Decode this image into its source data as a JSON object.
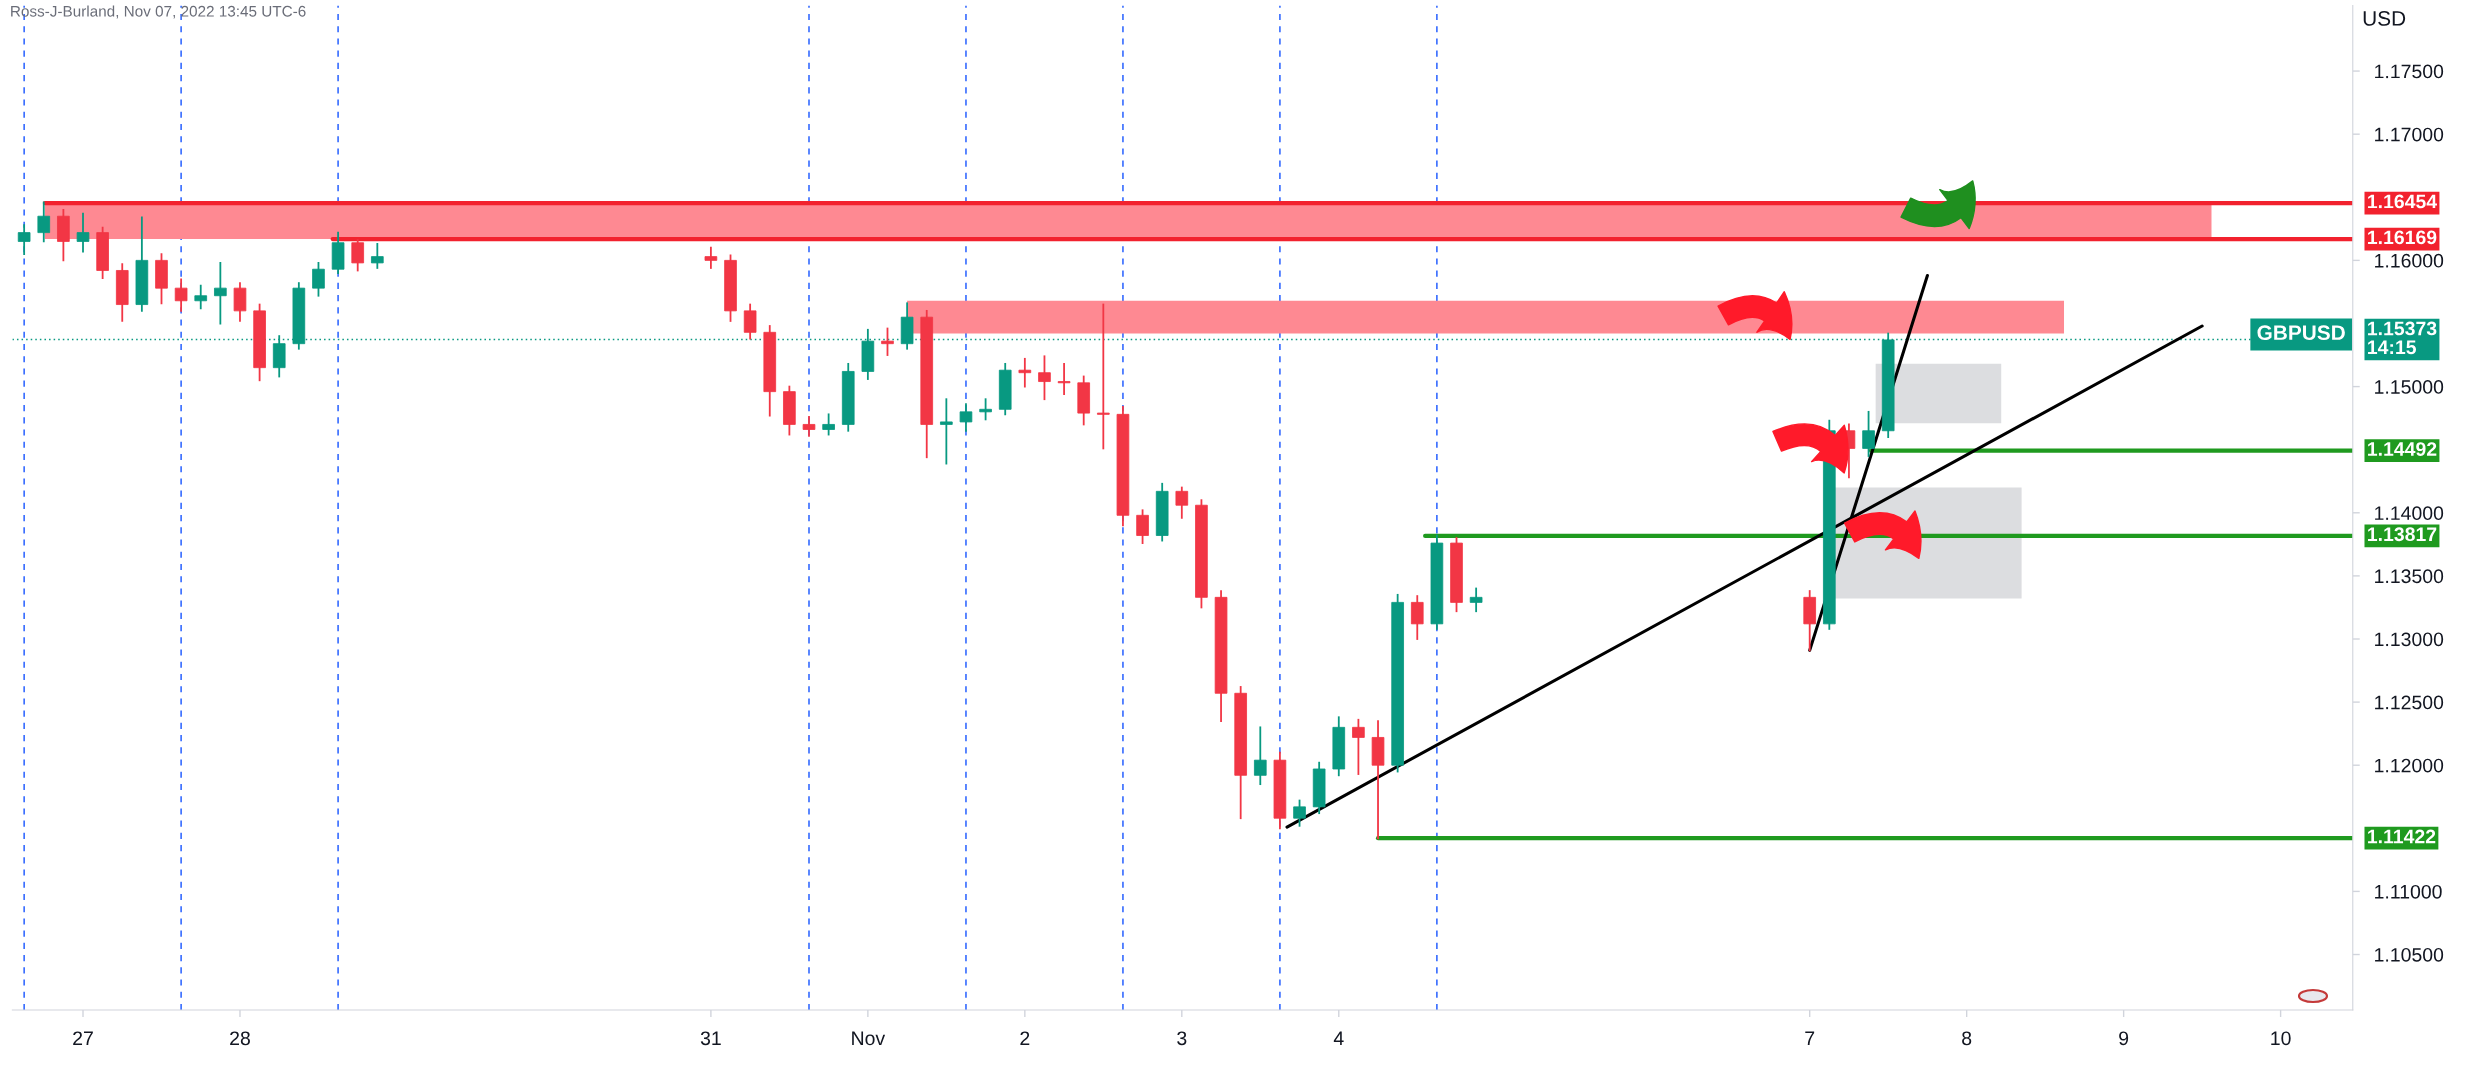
{
  "chart_data": {
    "type": "candlestick",
    "x": [
      "2022-10-26T15:00",
      "2022-10-26T18:00",
      "2022-10-26T21:00",
      "2022-10-27T00:00",
      "2022-10-27T03:00",
      "2022-10-27T06:00",
      "2022-10-27T09:00",
      "2022-10-27T12:00",
      "2022-10-27T15:00",
      "2022-10-27T18:00",
      "2022-10-27T21:00",
      "2022-10-28T00:00",
      "2022-10-28T03:00",
      "2022-10-28T06:00",
      "2022-10-28T09:00",
      "2022-10-28T12:00",
      "2022-10-28T15:00",
      "2022-10-28T18:00",
      "2022-10-28T21:00",
      "2022-10-31T00:00",
      "2022-10-31T03:00",
      "2022-10-31T06:00",
      "2022-10-31T09:00",
      "2022-10-31T12:00",
      "2022-10-31T15:00",
      "2022-10-31T18:00",
      "2022-10-31T21:00",
      "2022-11-01T00:00",
      "2022-11-01T03:00",
      "2022-11-01T06:00",
      "2022-11-01T09:00",
      "2022-11-01T12:00",
      "2022-11-01T15:00",
      "2022-11-01T18:00",
      "2022-11-01T21:00",
      "2022-11-02T00:00",
      "2022-11-02T03:00",
      "2022-11-02T06:00",
      "2022-11-02T09:00",
      "2022-11-02T12:00",
      "2022-11-02T15:00",
      "2022-11-02T18:00",
      "2022-11-02T21:00",
      "2022-11-03T00:00",
      "2022-11-03T03:00",
      "2022-11-03T06:00",
      "2022-11-03T09:00",
      "2022-11-03T12:00",
      "2022-11-03T15:00",
      "2022-11-03T18:00",
      "2022-11-03T21:00",
      "2022-11-04T00:00",
      "2022-11-04T03:00",
      "2022-11-04T06:00",
      "2022-11-04T09:00",
      "2022-11-04T12:00",
      "2022-11-04T15:00",
      "2022-11-04T18:00",
      "2022-11-04T21:00",
      "2022-11-07T00:00",
      "2022-11-07T03:00",
      "2022-11-07T06:00",
      "2022-11-07T09:00",
      "2022-11-07T12:00"
    ],
    "ohlc": [
      [
        1.1615,
        1.1628,
        1.1605,
        1.1622
      ],
      [
        1.1622,
        1.1646,
        1.1615,
        1.1635
      ],
      [
        1.1635,
        1.164,
        1.16,
        1.1615
      ],
      [
        1.1615,
        1.1637,
        1.1607,
        1.1622
      ],
      [
        1.1622,
        1.1626,
        1.1586,
        1.1592
      ],
      [
        1.1592,
        1.1597,
        1.1552,
        1.1565
      ],
      [
        1.1565,
        1.1634,
        1.156,
        1.16
      ],
      [
        1.16,
        1.1605,
        1.1566,
        1.1578
      ],
      [
        1.1578,
        1.1585,
        1.156,
        1.1568
      ],
      [
        1.1568,
        1.158,
        1.1562,
        1.1572
      ],
      [
        1.1572,
        1.1598,
        1.155,
        1.1578
      ],
      [
        1.1578,
        1.1582,
        1.1552,
        1.156
      ],
      [
        1.156,
        1.1565,
        1.1505,
        1.1515
      ],
      [
        1.1515,
        1.154,
        1.1508,
        1.1534
      ],
      [
        1.1534,
        1.1582,
        1.153,
        1.1578
      ],
      [
        1.1578,
        1.1598,
        1.1572,
        1.1593
      ],
      [
        1.1593,
        1.1622,
        1.159,
        1.1614
      ],
      [
        1.1614,
        1.1616,
        1.1592,
        1.1598
      ],
      [
        1.1598,
        1.1613,
        1.1594,
        1.1603
      ],
      [
        1.1603,
        1.161,
        1.1594,
        1.16
      ],
      [
        1.16,
        1.1604,
        1.1552,
        1.156
      ],
      [
        1.156,
        1.1565,
        1.1538,
        1.1543
      ],
      [
        1.1543,
        1.1548,
        1.1477,
        1.1496
      ],
      [
        1.1496,
        1.15,
        1.1462,
        1.147
      ],
      [
        1.147,
        1.1476,
        1.1461,
        1.1466
      ],
      [
        1.1466,
        1.1478,
        1.1462,
        1.147
      ],
      [
        1.147,
        1.1518,
        1.1465,
        1.1512
      ],
      [
        1.1512,
        1.1545,
        1.1506,
        1.1536
      ],
      [
        1.1536,
        1.1546,
        1.1525,
        1.1534
      ],
      [
        1.1534,
        1.1566,
        1.153,
        1.1555
      ],
      [
        1.1555,
        1.156,
        1.1444,
        1.147
      ],
      [
        1.147,
        1.149,
        1.1439,
        1.1472
      ],
      [
        1.1472,
        1.1486,
        1.1465,
        1.148
      ],
      [
        1.148,
        1.149,
        1.1474,
        1.1482
      ],
      [
        1.1482,
        1.1518,
        1.1478,
        1.1513
      ],
      [
        1.1513,
        1.1522,
        1.15,
        1.1511
      ],
      [
        1.1511,
        1.1524,
        1.149,
        1.1504
      ],
      [
        1.1504,
        1.1518,
        1.1494,
        1.1503
      ],
      [
        1.1503,
        1.1508,
        1.147,
        1.1479
      ],
      [
        1.1479,
        1.1565,
        1.1451,
        1.1478
      ],
      [
        1.1478,
        1.1484,
        1.139,
        1.1398
      ],
      [
        1.1398,
        1.1402,
        1.1376,
        1.1382
      ],
      [
        1.1382,
        1.1423,
        1.1378,
        1.1417
      ],
      [
        1.1417,
        1.142,
        1.1396,
        1.1406
      ],
      [
        1.1406,
        1.141,
        1.1325,
        1.1333
      ],
      [
        1.1333,
        1.1338,
        1.1235,
        1.1257
      ],
      [
        1.1257,
        1.1262,
        1.1158,
        1.1192
      ],
      [
        1.1192,
        1.123,
        1.1185,
        1.1204
      ],
      [
        1.1204,
        1.121,
        1.115,
        1.1158
      ],
      [
        1.1158,
        1.1172,
        1.1152,
        1.1167
      ],
      [
        1.1167,
        1.1202,
        1.1162,
        1.1197
      ],
      [
        1.1197,
        1.1238,
        1.1192,
        1.123
      ],
      [
        1.123,
        1.1236,
        1.1193,
        1.1222
      ],
      [
        1.1222,
        1.1235,
        1.1142,
        1.12
      ],
      [
        1.12,
        1.1335,
        1.1195,
        1.1329
      ],
      [
        1.1329,
        1.1334,
        1.13,
        1.1312
      ],
      [
        1.1312,
        1.1382,
        1.1308,
        1.1376
      ],
      [
        1.1376,
        1.138,
        1.1322,
        1.1329
      ],
      [
        1.1329,
        1.134,
        1.1322,
        1.1333
      ],
      [
        1.1333,
        1.1338,
        1.1291,
        1.1312
      ],
      [
        1.1312,
        1.1473,
        1.1308,
        1.1465
      ],
      [
        1.1465,
        1.147,
        1.1428,
        1.1451
      ],
      [
        1.1451,
        1.148,
        1.1445,
        1.1465
      ],
      [
        1.1465,
        1.1542,
        1.146,
        1.1537
      ]
    ],
    "colors": [
      "#089981",
      "#089981",
      "#f23645",
      "#089981",
      "#f23645",
      "#f23645",
      "#089981",
      "#f23645",
      "#f23645",
      "#089981",
      "#089981",
      "#f23645",
      "#f23645",
      "#089981",
      "#089981",
      "#089981",
      "#089981",
      "#f23645",
      "#089981",
      "#f23645",
      "#f23645",
      "#f23645",
      "#f23645",
      "#f23645",
      "#f23645",
      "#089981",
      "#089981",
      "#089981",
      "#f23645",
      "#089981",
      "#f23645",
      "#089981",
      "#089981",
      "#089981",
      "#089981",
      "#f23645",
      "#f23645",
      "#f23645",
      "#f23645",
      "#f23645",
      "#f23645",
      "#f23645",
      "#089981",
      "#f23645",
      "#f23645",
      "#f23645",
      "#f23645",
      "#089981",
      "#f23645",
      "#089981",
      "#089981",
      "#089981",
      "#f23645",
      "#f23645",
      "#089981",
      "#f23645",
      "#089981",
      "#f23645",
      "#089981",
      "#f23645",
      "#089981",
      "#f23645",
      "#089981",
      "#089981"
    ],
    "series": [
      {
        "type": "line",
        "x": [
          "2022-10-26T18:10",
          "2022-11-09T13:26"
        ],
        "values": [
          null,
          null
        ],
        "lower": [
          1.16169,
          1.16169
        ],
        "upper": [
          1.16454,
          1.16454
        ],
        "color": "#fe8992"
      },
      {
        "type": "line",
        "x": [
          "2022-11-01T06:00",
          "2022-11-08T14:53"
        ],
        "values": [
          null,
          null
        ],
        "lower": [
          1.1542,
          1.1542
        ],
        "upper": [
          1.1568,
          1.1568
        ],
        "color": "#fe8992"
      },
      {
        "type": "line",
        "x": [
          "2022-11-07T10:05",
          "2022-11-08T05:17"
        ],
        "values": [
          null,
          null
        ],
        "lower": [
          1.1471,
          1.1471
        ],
        "upper": [
          1.1518,
          1.1518
        ],
        "color": "#dcdde0"
      },
      {
        "type": "line",
        "x": [
          "2022-11-07T02:10",
          "2022-11-08T08:24"
        ],
        "values": [
          null,
          null
        ],
        "lower": [
          1.1332,
          1.1332
        ],
        "upper": [
          1.142,
          1.142
        ],
        "color": "#dcdde0"
      },
      {
        "type": "line",
        "x": [
          "2022-10-26T18:10",
          "2022-11-10T11:02"
        ],
        "values": [
          1.16454,
          1.16454
        ],
        "color": "#f2222e",
        "value_labels": [
          null,
          "1.16454"
        ]
      },
      {
        "type": "line",
        "x": [
          "2022-10-28T14:10",
          "2022-11-10T11:02"
        ],
        "values": [
          1.16169,
          1.16169
        ],
        "color": "#f2222e",
        "value_labels": [
          null,
          "1.16169"
        ]
      },
      {
        "type": "line",
        "x": [
          "2022-11-07T09:22",
          "2022-11-10T11:02"
        ],
        "values": [
          1.14492,
          1.14492
        ],
        "color": "#1f9a1f",
        "value_labels": [
          null,
          "1.14492"
        ]
      },
      {
        "type": "line",
        "x": [
          "2022-11-04T13:12",
          "2022-11-10T11:02"
        ],
        "values": [
          1.13817,
          1.13817
        ],
        "color": "#1f9a1f",
        "value_labels": [
          null,
          "1.13817"
        ]
      },
      {
        "type": "line",
        "x": [
          "2022-11-04T06:00",
          "2022-11-10T11:02"
        ],
        "values": [
          1.11422,
          1.11422
        ],
        "color": "#1f9a1f",
        "value_labels": [
          null,
          "1.11422"
        ]
      },
      {
        "type": "line",
        "x": [
          "2022-11-03T16:05",
          "2022-11-09T12:00"
        ],
        "values": [
          1.1151,
          1.1548
        ],
        "color": "#000000"
      },
      {
        "type": "line",
        "x": [
          "2022-11-07T00:00",
          "2022-11-07T18:00"
        ],
        "values": [
          1.1291,
          1.1588
        ],
        "color": "#000000"
      }
    ],
    "xlim": [
      "2022-10-26T13:12",
      "2022-11-10T11:02"
    ],
    "xticks": [
      {
        "value": "2022-10-27",
        "label": "27"
      },
      {
        "value": "2022-10-28",
        "label": "28"
      },
      {
        "value": "2022-10-31",
        "label": "31"
      },
      {
        "value": "2022-11-01",
        "label": "Nov"
      },
      {
        "value": "2022-11-02",
        "label": "2"
      },
      {
        "value": "2022-11-03",
        "label": "3"
      },
      {
        "value": "2022-11-04",
        "label": "4"
      },
      {
        "value": "2022-11-07",
        "label": "7"
      },
      {
        "value": "2022-11-08",
        "label": "8"
      },
      {
        "value": "2022-11-09",
        "label": "9"
      },
      {
        "value": "2022-11-10",
        "label": "10"
      }
    ],
    "ylim": [
      1.1006,
      1.1802
    ],
    "yticks": [
      {
        "value": 1.105,
        "label": "1.10500"
      },
      {
        "value": 1.11,
        "label": "1.11000"
      },
      {
        "value": 1.12,
        "label": "1.12000"
      },
      {
        "value": 1.125,
        "label": "1.12500"
      },
      {
        "value": 1.13,
        "label": "1.13000"
      },
      {
        "value": 1.135,
        "label": "1.13500"
      },
      {
        "value": 1.14,
        "label": "1.14000"
      },
      {
        "value": 1.15,
        "label": "1.15000"
      },
      {
        "value": 1.16,
        "label": "1.16000"
      },
      {
        "value": 1.17,
        "label": "1.17000"
      },
      {
        "value": 1.175,
        "label": "1.17500"
      }
    ],
    "ylabel": "USD",
    "ref_lines": [
      {
        "axis": "x",
        "value": "2022-10-26T15:00",
        "color": "#2962ff",
        "line_style": "dashed"
      },
      {
        "axis": "x",
        "value": "2022-10-27T15:00",
        "color": "#2962ff",
        "line_style": "dashed"
      },
      {
        "axis": "x",
        "value": "2022-10-28T15:00",
        "color": "#2962ff",
        "line_style": "dashed"
      },
      {
        "axis": "x",
        "value": "2022-10-31T15:00",
        "color": "#2962ff",
        "line_style": "dashed"
      },
      {
        "axis": "x",
        "value": "2022-11-01T15:00",
        "color": "#2962ff",
        "line_style": "dashed"
      },
      {
        "axis": "x",
        "value": "2022-11-02T15:00",
        "color": "#2962ff",
        "line_style": "dashed"
      },
      {
        "axis": "x",
        "value": "2022-11-03T15:00",
        "color": "#2962ff",
        "line_style": "dashed"
      },
      {
        "axis": "x",
        "value": "2022-11-04T15:00",
        "color": "#2962ff",
        "line_style": "dashed"
      },
      {
        "axis": "y",
        "value": 1.15373,
        "color": "#089981",
        "line_style": "dotted",
        "label": "1.15373\n14:15"
      }
    ],
    "annotations": [
      "Ross-J-Burland, Nov 07, 2022 13:45 UTC-6",
      "GBPUSD"
    ]
  }
}
